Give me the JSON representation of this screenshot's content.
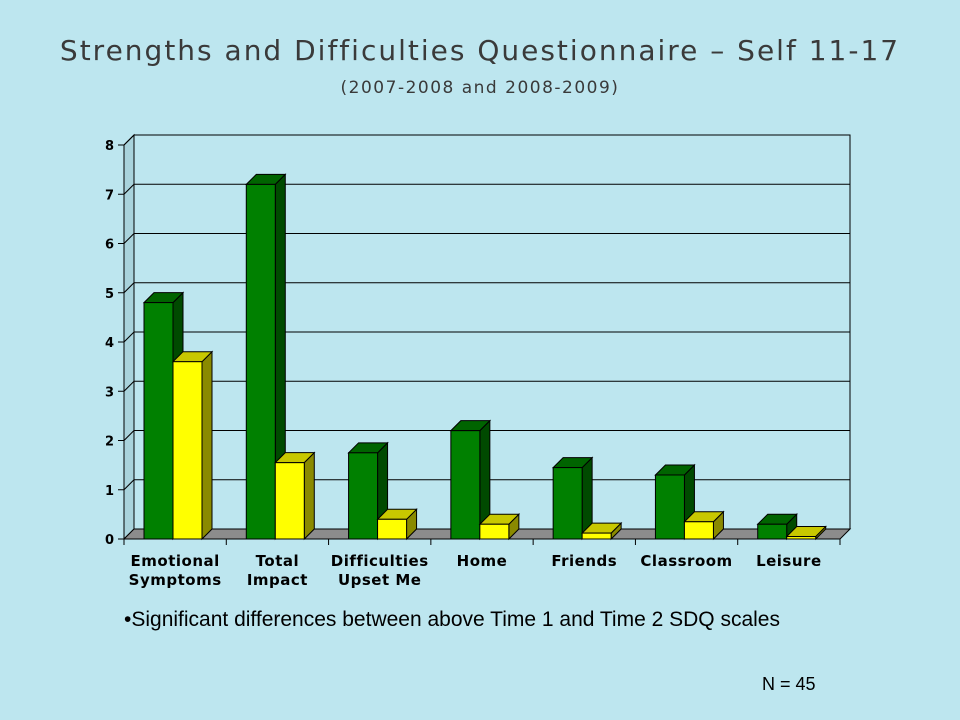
{
  "chart_data": {
    "type": "bar",
    "title": "Strengths and Difficulties Questionnaire – Self 11-17",
    "subtitle": "(2007-2008 and 2008-2009)",
    "categories": [
      [
        "Emotional",
        "Symptoms"
      ],
      [
        "Total",
        "Impact"
      ],
      [
        "Difficulties",
        "Upset Me"
      ],
      [
        "Home"
      ],
      [
        "Friends"
      ],
      [
        "Classroom"
      ],
      [
        "Leisure"
      ]
    ],
    "series": [
      {
        "values": [
          4.8,
          7.2,
          1.75,
          2.2,
          1.45,
          1.3,
          0.3
        ],
        "color": "#008000",
        "side_color": "#004a00",
        "top_color": "#006400"
      },
      {
        "values": [
          3.6,
          1.55,
          0.4,
          0.3,
          0.12,
          0.35,
          0.05
        ],
        "color": "#ffff00",
        "side_color": "#8a8a00",
        "top_color": "#c8c800"
      }
    ],
    "ylim": [
      0,
      8
    ],
    "yticks": [
      "0",
      "1",
      "2",
      "3",
      "4",
      "5",
      "6",
      "7",
      "8"
    ],
    "grid": true,
    "xlabel": "",
    "ylabel": ""
  },
  "note": "•Significant differences between above Time 1 and Time 2 SDQ scales",
  "sample_size": "N = 45"
}
